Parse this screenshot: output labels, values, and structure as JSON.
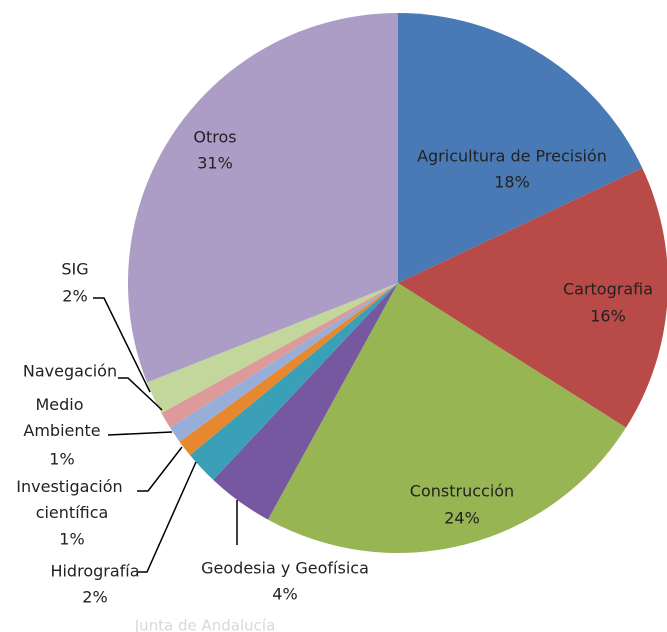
{
  "chart_data": {
    "type": "pie",
    "categories": [
      "Agricultura de Precisión",
      "Cartografia",
      "Construcción",
      "Geodesia y Geofísica",
      "Hidrografía",
      "Investigación científica",
      "Medio Ambiente",
      "Navegación",
      "SIG",
      "Otros"
    ],
    "values": [
      18,
      16,
      24,
      4,
      2,
      1,
      1,
      1,
      2,
      31
    ],
    "value_labels": [
      "18%",
      "16%",
      "24%",
      "4%",
      "2%",
      "1%",
      "1%",
      null,
      "2%",
      "31%"
    ],
    "colors": [
      "#4a7ab5",
      "#b84a47",
      "#97b553",
      "#7658a0",
      "#3aa0b8",
      "#e8882e",
      "#97aed8",
      "#dc9a9a",
      "#c3d69b",
      "#ac9dc6"
    ],
    "watermark": "Junta de Andalucía"
  }
}
